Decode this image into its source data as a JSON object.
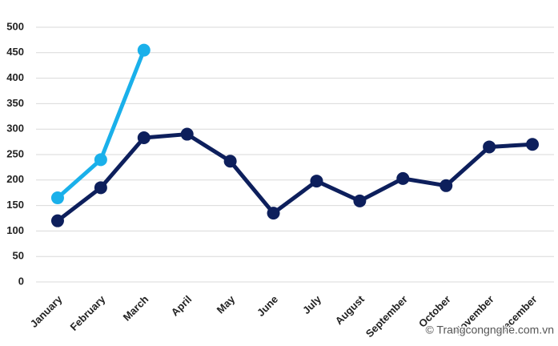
{
  "chart_data": {
    "type": "line",
    "categories": [
      "January",
      "February",
      "March",
      "April",
      "May",
      "June",
      "July",
      "August",
      "September",
      "October",
      "November",
      "December"
    ],
    "series": [
      {
        "color": "#0d1f5c",
        "values": [
          120,
          185,
          283,
          290,
          237,
          135,
          198,
          159,
          203,
          189,
          265,
          270
        ]
      },
      {
        "color": "#1ab0ea",
        "values": [
          165,
          240,
          455,
          null,
          null,
          null,
          null,
          null,
          null,
          null,
          null,
          null
        ]
      }
    ],
    "ylim": [
      0,
      500
    ],
    "yticks": [
      0,
      50,
      100,
      150,
      200,
      250,
      300,
      350,
      400,
      450,
      500
    ],
    "grid": true,
    "annotation": "© Trangcongnghe.com.vn"
  }
}
